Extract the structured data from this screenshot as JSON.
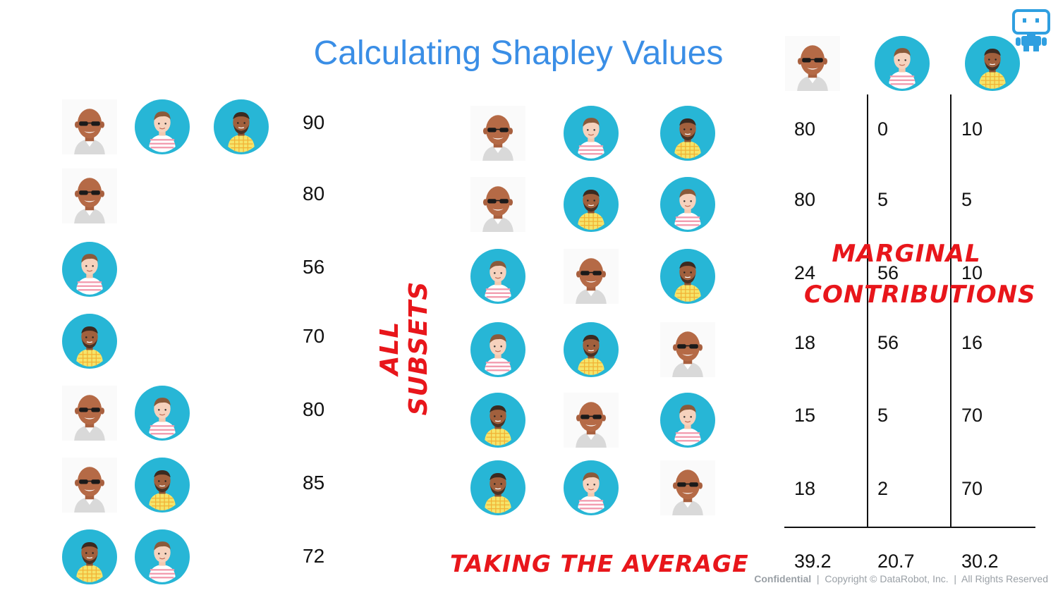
{
  "title": "Calculating Shapley Values",
  "subsets": [
    {
      "players": [
        "bald-man",
        "young-man",
        "bearded-man"
      ],
      "value": "90"
    },
    {
      "players": [
        "bald-man"
      ],
      "value": "80"
    },
    {
      "players": [
        "young-man"
      ],
      "value": "56"
    },
    {
      "players": [
        "bearded-man"
      ],
      "value": "70"
    },
    {
      "players": [
        "bald-man",
        "young-man"
      ],
      "value": "80"
    },
    {
      "players": [
        "bald-man",
        "bearded-man"
      ],
      "value": "85"
    },
    {
      "players": [
        "bearded-man",
        "young-man"
      ],
      "value": "72"
    }
  ],
  "orderings": [
    [
      "bald-man",
      "young-man",
      "bearded-man"
    ],
    [
      "bald-man",
      "bearded-man",
      "young-man"
    ],
    [
      "young-man",
      "bald-man",
      "bearded-man"
    ],
    [
      "young-man",
      "bearded-man",
      "bald-man"
    ],
    [
      "bearded-man",
      "bald-man",
      "young-man"
    ],
    [
      "bearded-man",
      "young-man",
      "bald-man"
    ]
  ],
  "contribution_headers": [
    "bald-man",
    "young-man",
    "bearded-man"
  ],
  "contributions": [
    [
      "80",
      "0",
      "10"
    ],
    [
      "80",
      "5",
      "5"
    ],
    [
      "24",
      "56",
      "10"
    ],
    [
      "18",
      "56",
      "16"
    ],
    [
      "15",
      "5",
      "70"
    ],
    [
      "18",
      "2",
      "70"
    ]
  ],
  "averages": [
    "39.2",
    "20.7",
    "30.2"
  ],
  "annotations": {
    "all_subsets": "All Subsets",
    "marginal_line1": "Marginal",
    "marginal_line2": "Contributions",
    "taking_average": "Taking the Average"
  },
  "footer": {
    "confidential": "Confidential",
    "copyright": "  |  Copyright © DataRobot, Inc.  |  All Rights Reserved"
  },
  "colors": {
    "title": "#3a8ee6",
    "annotation": "#e8161b",
    "avatar_bg": "#27b6d6"
  }
}
